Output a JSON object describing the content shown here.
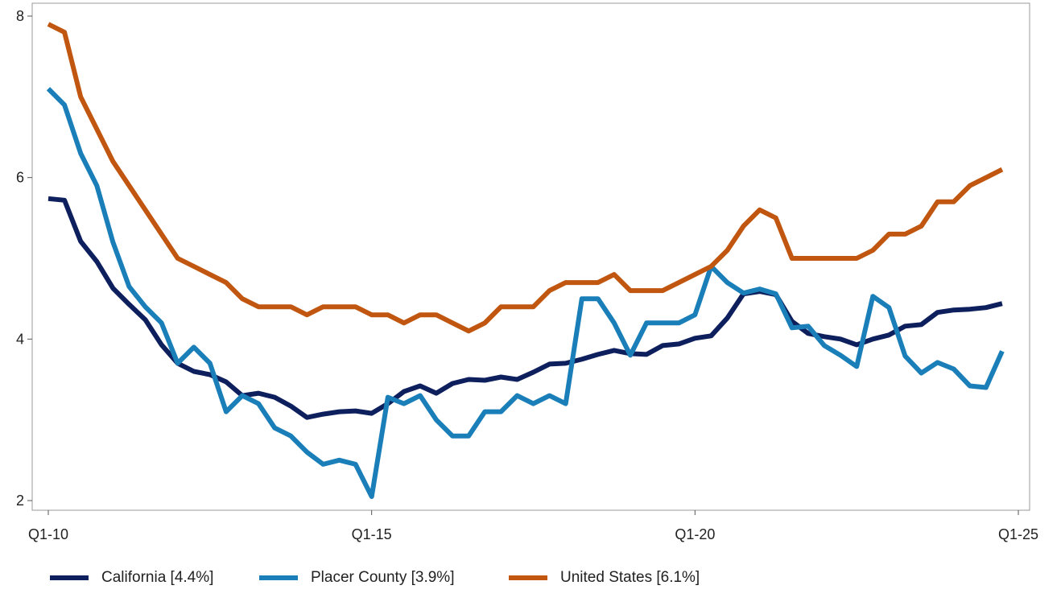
{
  "chart_data": {
    "type": "line",
    "title": "",
    "xlabel": "",
    "ylabel": "",
    "x_ticks": [
      "Q1-10",
      "Q1-15",
      "Q1-20",
      "Q1-25"
    ],
    "y_ticks": [
      2,
      4,
      6,
      8
    ],
    "ylim": [
      2,
      8
    ],
    "grid": false,
    "legend_position": "bottom",
    "x_start": "Q1-10",
    "x_end": "Q1-25",
    "series": [
      {
        "name": "California [4.4%]",
        "color": "#0d1f5c",
        "values": [
          5.74,
          5.72,
          5.21,
          4.96,
          4.63,
          4.43,
          4.24,
          3.93,
          3.7,
          3.6,
          3.56,
          3.47,
          3.3,
          3.33,
          3.28,
          3.17,
          3.03,
          3.07,
          3.1,
          3.11,
          3.08,
          3.2,
          3.35,
          3.42,
          3.33,
          3.45,
          3.5,
          3.49,
          3.53,
          3.5,
          3.59,
          3.69,
          3.7,
          3.75,
          3.81,
          3.86,
          3.82,
          3.81,
          3.92,
          3.94,
          4.01,
          4.04,
          4.26,
          4.56,
          4.59,
          4.55,
          4.22,
          4.07,
          4.03,
          4.0,
          3.93,
          4.0,
          4.05,
          4.16,
          4.18,
          4.33,
          4.36,
          4.37,
          4.39,
          4.44
        ]
      },
      {
        "name": "Placer County [3.9%]",
        "color": "#1a7fb8",
        "values": [
          7.1,
          6.9,
          6.3,
          5.9,
          5.2,
          4.65,
          4.4,
          4.2,
          3.7,
          3.9,
          3.7,
          3.1,
          3.3,
          3.2,
          2.9,
          2.8,
          2.6,
          2.45,
          2.5,
          2.45,
          2.05,
          3.28,
          3.2,
          3.3,
          3.0,
          2.8,
          2.8,
          3.1,
          3.1,
          3.3,
          3.2,
          3.3,
          3.2,
          4.5,
          4.5,
          4.2,
          3.8,
          4.2,
          4.2,
          4.2,
          4.3,
          4.9,
          4.7,
          4.57,
          4.62,
          4.56,
          4.14,
          4.16,
          3.92,
          3.8,
          3.66,
          4.53,
          4.39,
          3.79,
          3.58,
          3.71,
          3.63,
          3.42,
          3.4,
          3.85
        ]
      },
      {
        "name": "United States [6.1%]",
        "color": "#c0560f",
        "values": [
          7.9,
          7.8,
          7.0,
          6.6,
          6.2,
          5.9,
          5.6,
          5.3,
          5.0,
          4.9,
          4.8,
          4.7,
          4.5,
          4.4,
          4.4,
          4.4,
          4.3,
          4.4,
          4.4,
          4.4,
          4.3,
          4.3,
          4.2,
          4.3,
          4.3,
          4.2,
          4.1,
          4.2,
          4.4,
          4.4,
          4.4,
          4.6,
          4.7,
          4.7,
          4.7,
          4.8,
          4.6,
          4.6,
          4.6,
          4.7,
          4.8,
          4.9,
          5.1,
          5.4,
          5.6,
          5.5,
          5.0,
          5.0,
          5.0,
          5.0,
          5.0,
          5.1,
          5.3,
          5.3,
          5.4,
          5.7,
          5.7,
          5.9,
          6.0,
          6.1
        ]
      }
    ]
  }
}
